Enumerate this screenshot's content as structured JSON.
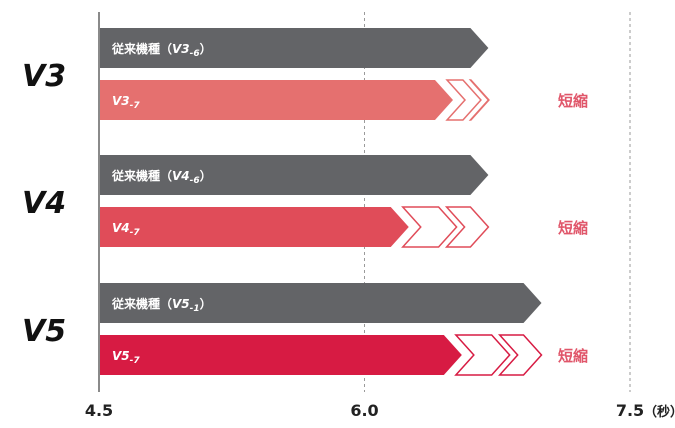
{
  "chart_data": {
    "type": "bar",
    "orientation": "horizontal",
    "x_ticks": [
      {
        "value": 4.5,
        "label": "4.5"
      },
      {
        "value": 6.0,
        "label": "6.0"
      },
      {
        "value": 7.5,
        "label": "7.5"
      }
    ],
    "x_unit": "（秒）",
    "xlim": [
      4.5,
      7.5
    ],
    "grid": "vertical dashed",
    "groups": [
      {
        "label": "V3",
        "bars": [
          {
            "kind": "old",
            "label_prefix": "従来機種（",
            "model": "V3",
            "suffix": "-6",
            "label_suffix": "）",
            "value": 6.7,
            "color": "#636467"
          },
          {
            "kind": "new",
            "label_prefix": "",
            "model": "V3",
            "suffix": "-7",
            "label_suffix": "",
            "value": 6.5,
            "color": "#e5706f",
            "reduced_to": 6.7,
            "note": "短縮"
          }
        ]
      },
      {
        "label": "V4",
        "bars": [
          {
            "kind": "old",
            "label_prefix": "従来機種（",
            "model": "V4",
            "suffix": "-6",
            "label_suffix": "）",
            "value": 6.7,
            "color": "#636467"
          },
          {
            "kind": "new",
            "label_prefix": "",
            "model": "V4",
            "suffix": "-7",
            "label_suffix": "",
            "value": 6.25,
            "color": "#e04c59",
            "reduced_to": 6.7,
            "note": "短縮"
          }
        ]
      },
      {
        "label": "V5",
        "bars": [
          {
            "kind": "old",
            "label_prefix": "従来機種（",
            "model": "V5",
            "suffix": "-1",
            "label_suffix": "）",
            "value": 7.0,
            "color": "#636467"
          },
          {
            "kind": "new",
            "label_prefix": "",
            "model": "V5",
            "suffix": "-7",
            "label_suffix": "",
            "value": 6.55,
            "color": "#d71b43",
            "reduced_to": 7.0,
            "note": "短縮"
          }
        ]
      }
    ],
    "note_color": "#e0566a",
    "old_color": "#636467",
    "axis_color": "#8a8a8a"
  }
}
